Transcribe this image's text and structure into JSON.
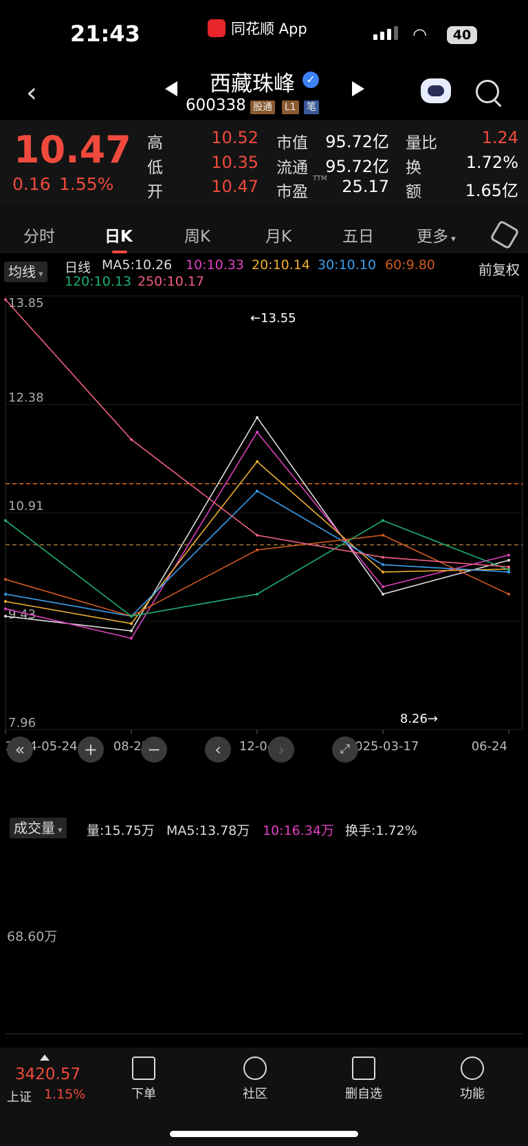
{
  "status_bar": {
    "time": "21:43",
    "app_name": "同花顺 App",
    "battery": "40"
  },
  "header": {
    "stock_name": "西藏珠峰",
    "code": "600338",
    "badges": [
      "股通",
      "L1",
      "笔"
    ]
  },
  "quote": {
    "price": "10.47",
    "change": "0.16",
    "change_pct": "1.55%",
    "high_label": "高",
    "high": "10.52",
    "low_label": "低",
    "low": "10.35",
    "open_label": "开",
    "open": "10.47",
    "mcap_label": "市值",
    "mcap": "95.72亿",
    "float_label": "流通",
    "float": "95.72亿",
    "pe_label": "市盈",
    "pe_sup": "TTM",
    "pe": "25.17",
    "vr_label": "量比",
    "vr": "1.24",
    "turnover_label": "换",
    "turnover": "1.72%",
    "amount_label": "额",
    "amount": "1.65亿"
  },
  "tabs": [
    "分时",
    "日K",
    "周K",
    "月K",
    "五日",
    "更多"
  ],
  "active_tab": "日K",
  "kline": {
    "select_label": "均线",
    "period_label": "日线",
    "fq_label": "前复权",
    "ma": [
      {
        "label": "MA5:10.26",
        "color": "#dddddd"
      },
      {
        "label": "10:10.33",
        "color": "#e040c0"
      },
      {
        "label": "20:10.14",
        "color": "#f0b030"
      },
      {
        "label": "30:10.10",
        "color": "#3aa0f0"
      },
      {
        "label": "60:9.80",
        "color": "#d05a20"
      },
      {
        "label": "120:10.13",
        "color": "#20b070"
      },
      {
        "label": "250:10.17",
        "color": "#f06080"
      }
    ],
    "y_labels": [
      "13.85",
      "12.38",
      "10.91",
      "9.43",
      "7.96"
    ],
    "x_labels": [
      "2024-05-24",
      "08-23",
      "12-04",
      "2025-03-17",
      "06-24"
    ],
    "max_marker": "←13.55",
    "min_marker": "8.26→"
  },
  "volume": {
    "select_label": "成交量",
    "vol": "量:15.75万",
    "ma5": "MA5:13.78万",
    "ma10": "10:16.34万",
    "turnover": "换手:1.72%",
    "y_label": "68.60万"
  },
  "chart_data": {
    "type": "line",
    "title": "",
    "x": [
      "2024-05-24",
      "08-23",
      "12-04",
      "2025-03-17",
      "06-24"
    ],
    "series": [
      {
        "name": "MA5",
        "values": [
          9.5,
          9.3,
          12.2,
          9.8,
          10.26
        ]
      },
      {
        "name": "10",
        "values": [
          9.6,
          9.2,
          12.0,
          9.9,
          10.33
        ]
      },
      {
        "name": "20",
        "values": [
          9.7,
          9.4,
          11.6,
          10.1,
          10.14
        ]
      },
      {
        "name": "30",
        "values": [
          9.8,
          9.5,
          11.2,
          10.2,
          10.1
        ]
      },
      {
        "name": "60",
        "values": [
          10.0,
          9.5,
          10.4,
          10.6,
          9.8
        ]
      },
      {
        "name": "120",
        "values": [
          10.8,
          9.5,
          9.8,
          10.8,
          10.13
        ]
      },
      {
        "name": "250",
        "values": [
          13.8,
          11.9,
          10.6,
          10.3,
          10.17
        ]
      }
    ],
    "ylim": [
      7.96,
      13.85
    ],
    "max": 13.55,
    "min": 8.26,
    "reference_lines": [
      11.3,
      10.47
    ]
  },
  "bottom": {
    "index_value": "3420.57",
    "index_name": "上证",
    "index_pct": "1.15%",
    "nav": [
      "下单",
      "社区",
      "删自选",
      "功能"
    ]
  }
}
